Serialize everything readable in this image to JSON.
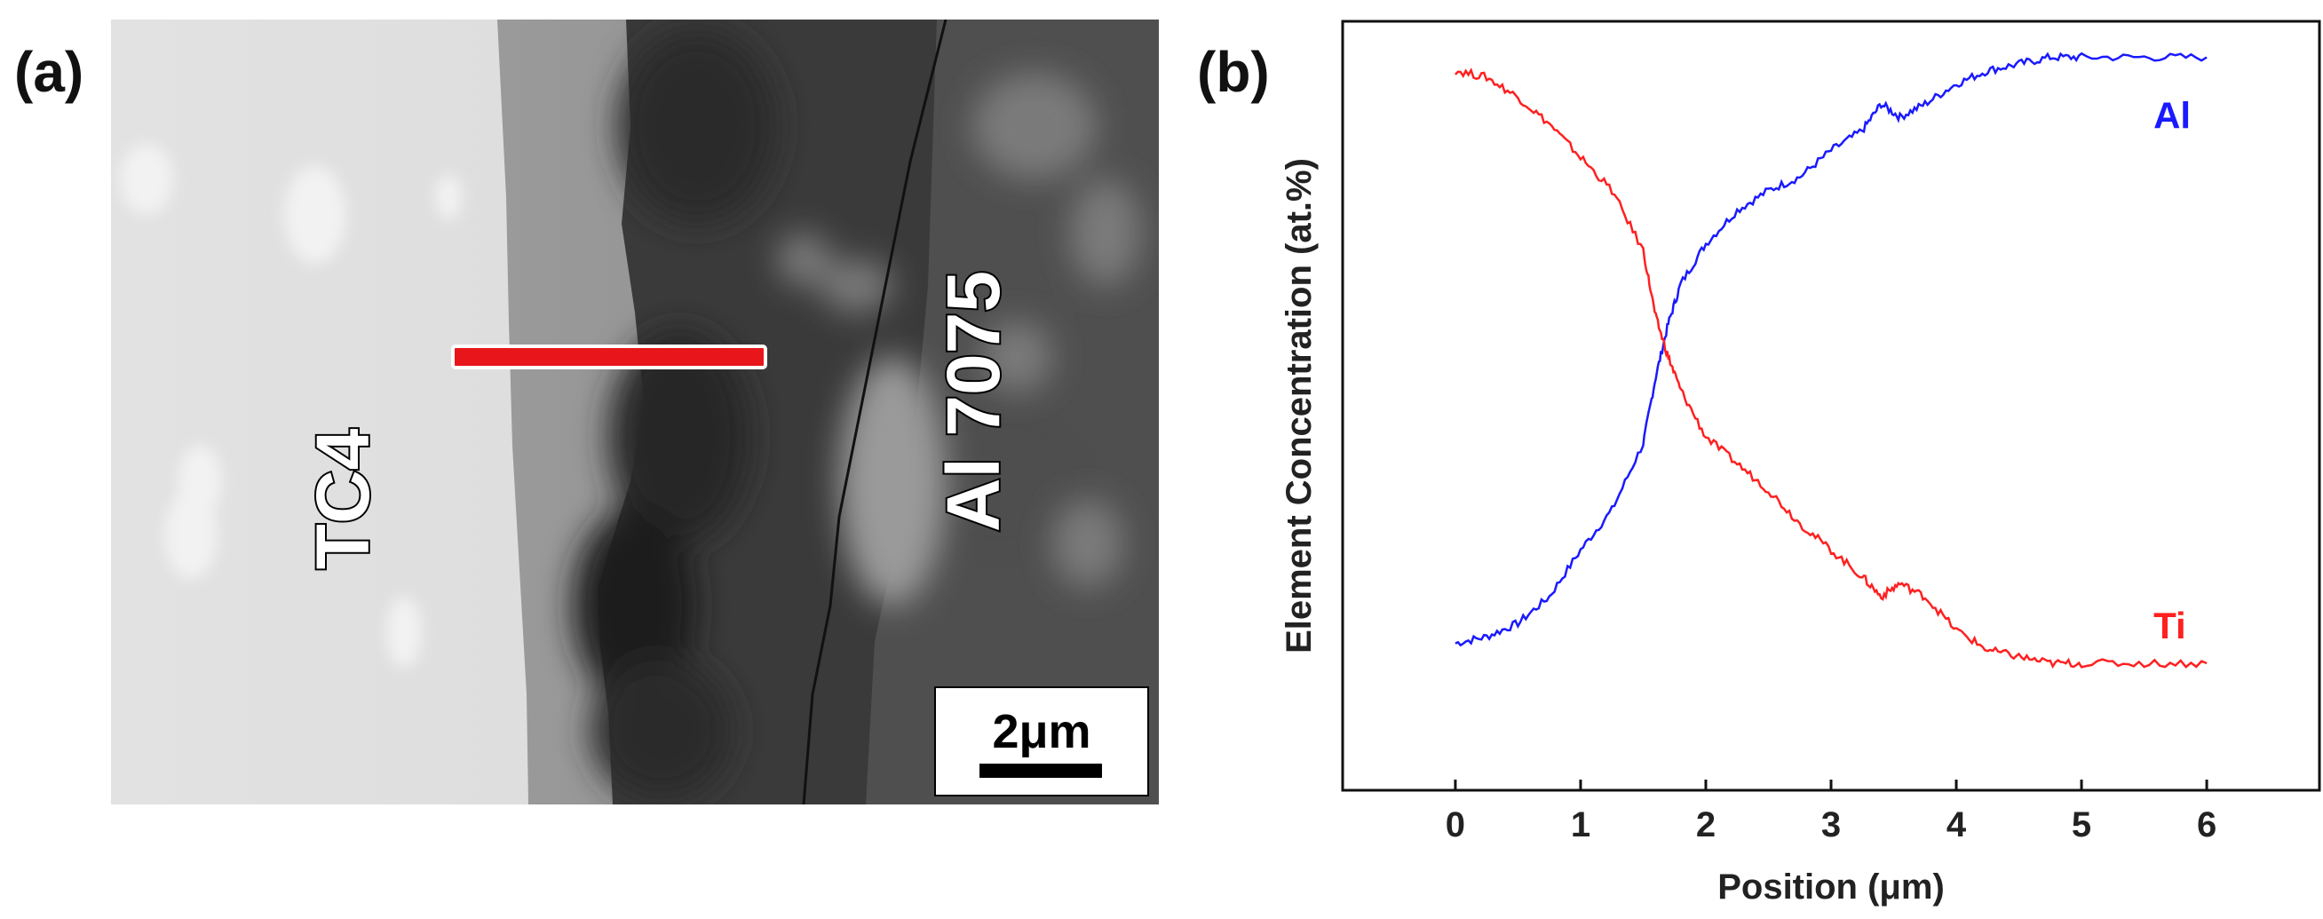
{
  "panels": {
    "a_label": "(a)",
    "b_label": "(b)"
  },
  "sem": {
    "left_material": "TC4",
    "right_material": "Al 7075",
    "scale_bar_label": "2μm",
    "line_scan_color": "#e8161a"
  },
  "chart_data": {
    "type": "line",
    "title": "",
    "xlabel": "Position (μm)",
    "ylabel": "Element Concentration (at.%)",
    "xlim": [
      -0.9,
      6.9
    ],
    "ylim": [
      0,
      100
    ],
    "x_ticks": [
      "0",
      "1",
      "2",
      "3",
      "4",
      "5",
      "6"
    ],
    "y_ticks_shown": false,
    "grid": false,
    "legend": "inline labels at right",
    "x": [
      0,
      0.25,
      0.5,
      0.75,
      1.0,
      1.25,
      1.5,
      1.6,
      1.7,
      1.8,
      2.0,
      2.25,
      2.5,
      2.75,
      3.0,
      3.25,
      3.4,
      3.55,
      3.75,
      4.0,
      4.25,
      4.5,
      4.75,
      5.0,
      5.5,
      6.0
    ],
    "series": [
      {
        "name": "Al",
        "color": "#1a1aff",
        "values": [
          13,
          14,
          16,
          20,
          27,
          33,
          43,
          53,
          61,
          67,
          73,
          78,
          81,
          83,
          87,
          90,
          94,
          92,
          94,
          97,
          99,
          100,
          101,
          101,
          101,
          101
        ]
      },
      {
        "name": "Ti",
        "color": "#ff2020",
        "values": [
          99,
          98,
          95,
          91,
          86,
          81,
          72,
          62,
          56,
          51,
          44,
          40,
          36,
          31,
          27,
          23,
          20,
          22,
          20,
          15,
          12,
          11,
          10,
          10,
          10,
          10
        ]
      }
    ]
  }
}
